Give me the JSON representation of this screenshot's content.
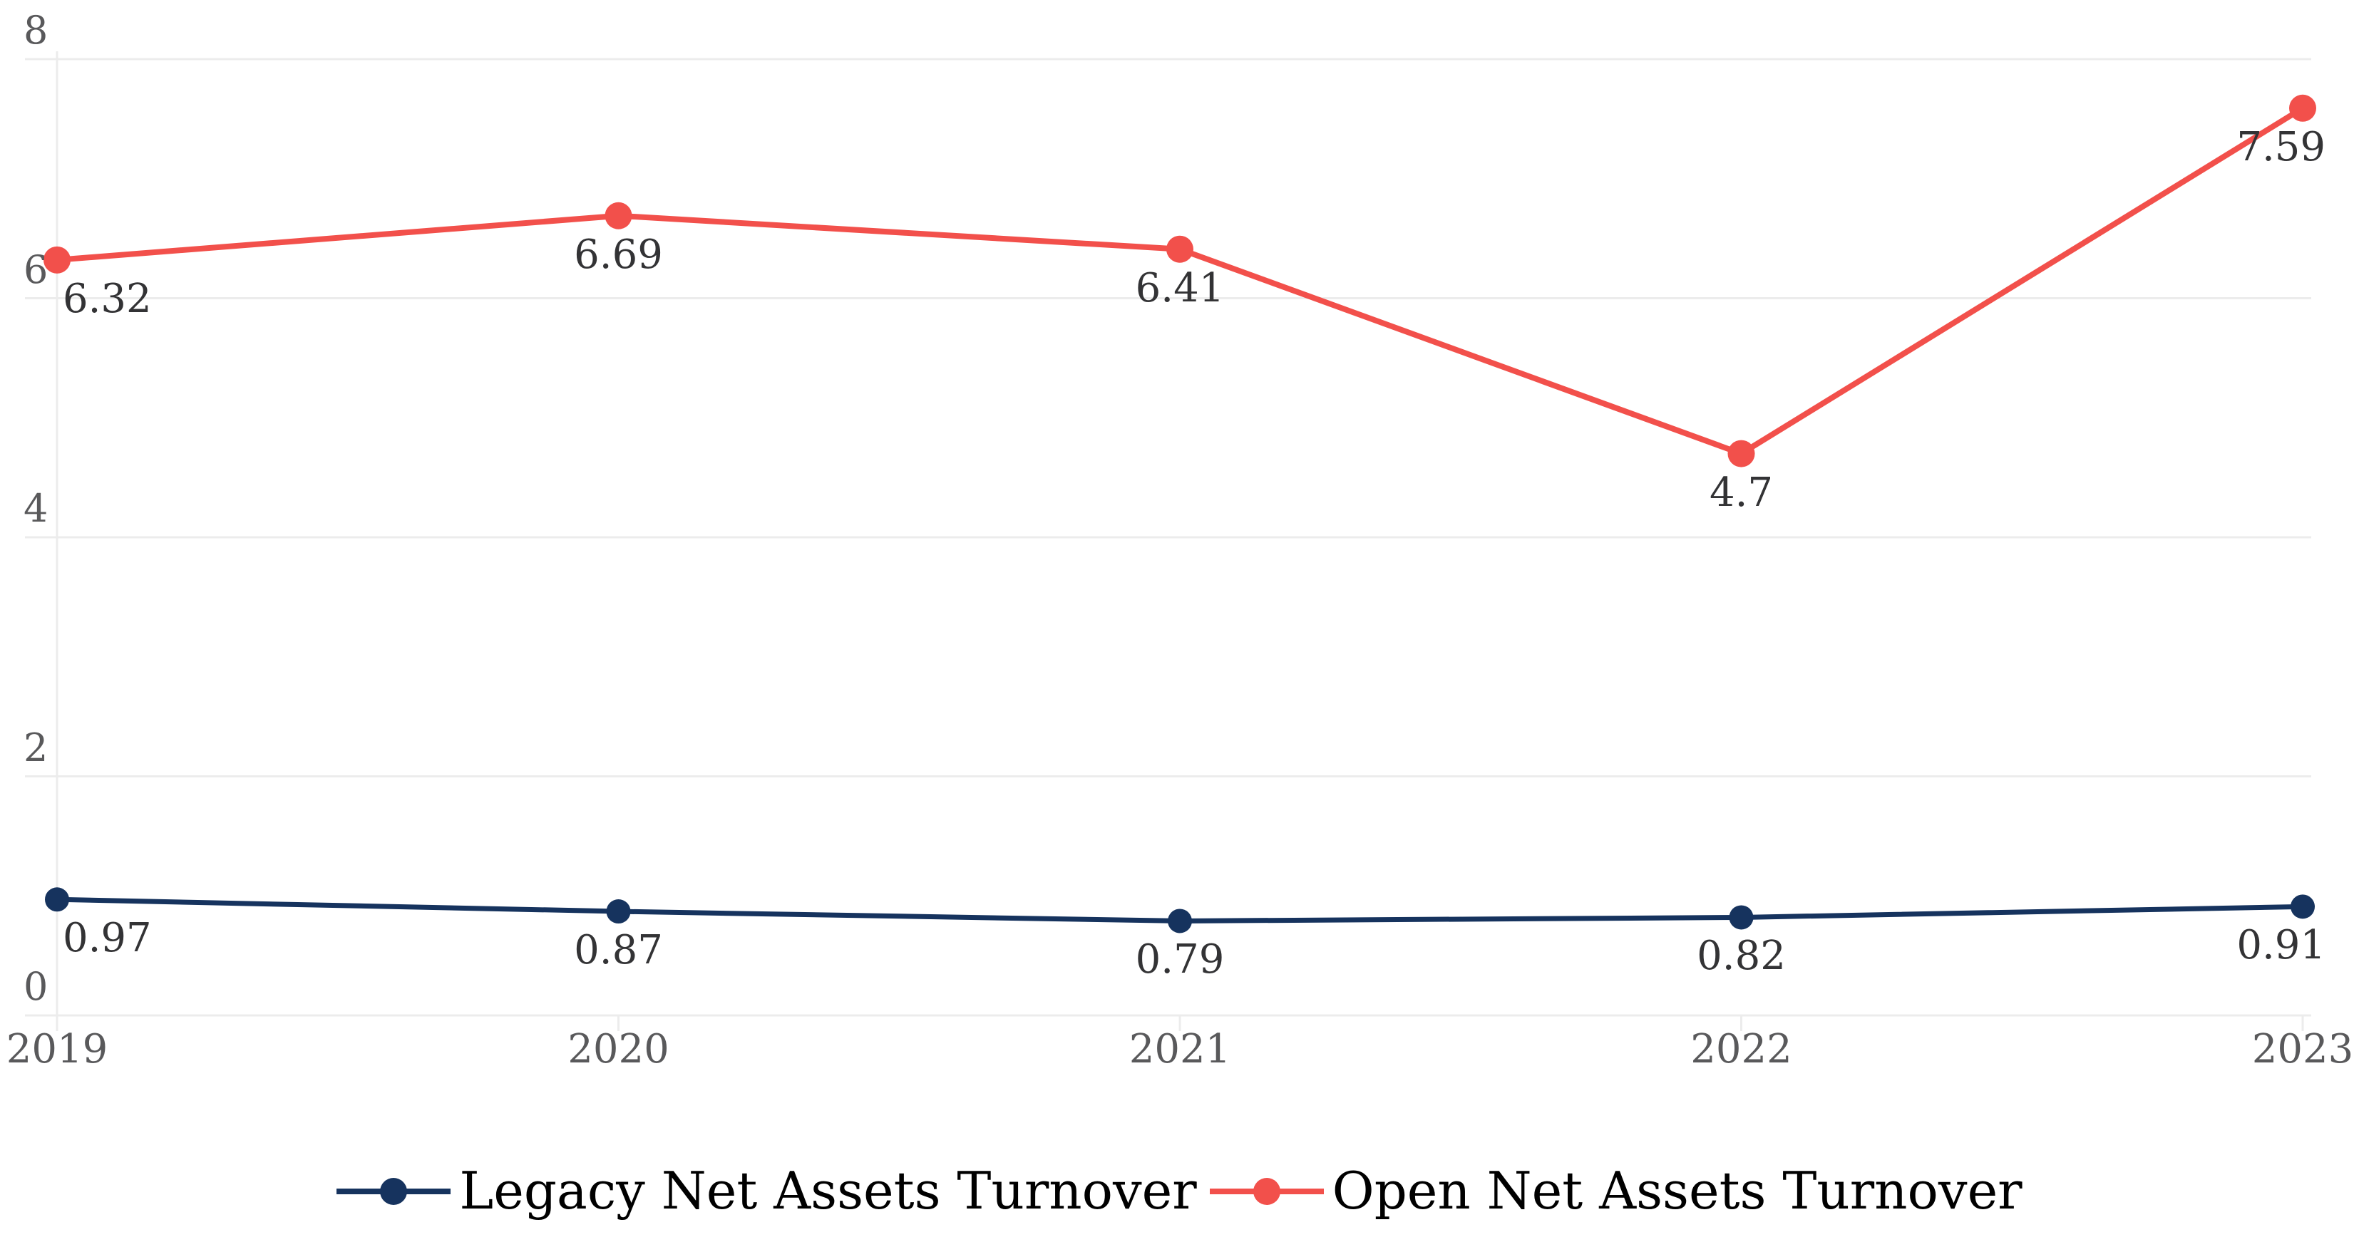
{
  "chart_data": {
    "type": "line",
    "title": "",
    "categories": [
      "2019",
      "2020",
      "2021",
      "2022",
      "2023"
    ],
    "series": [
      {
        "name": "Legacy Net Assets Turnover",
        "color": "#16335E",
        "values": [
          0.97,
          0.87,
          0.79,
          0.82,
          0.91
        ]
      },
      {
        "name": "Open Net Assets Turnover",
        "color": "#F2504B",
        "values": [
          6.32,
          6.69,
          6.41,
          4.7,
          7.59
        ]
      }
    ],
    "yticks": [
      0,
      2,
      4,
      6,
      8
    ],
    "ylim": [
      0,
      8
    ],
    "xlabel": "",
    "ylabel": "",
    "grid": true,
    "legend_position": "bottom",
    "point_labels_visible": true
  },
  "colors": {
    "background": "#FFFFFF",
    "gridline": "#ECECEC",
    "axis_label": "#59595B",
    "data_label": "#333335",
    "legend_text": "#000000",
    "series_legacy": "#16335E",
    "series_open": "#F2504B"
  }
}
